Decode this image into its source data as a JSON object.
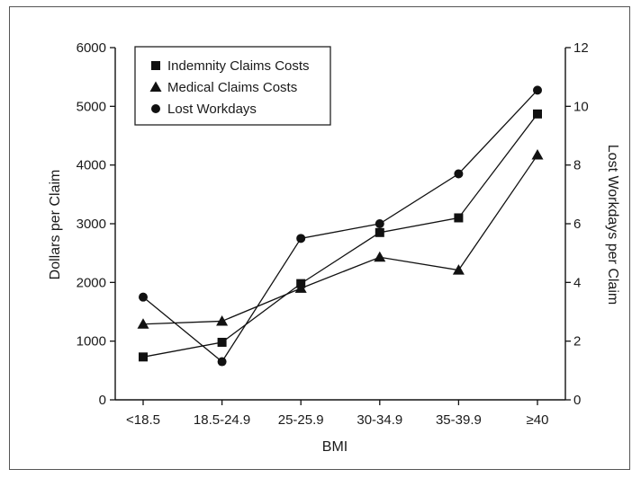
{
  "chart_data": {
    "type": "line",
    "categories": [
      "<18.5",
      "18.5-24.9",
      "25-25.9",
      "30-34.9",
      "35-39.9",
      "≥40"
    ],
    "xlabel": "BMI",
    "ylabel": "Dollars per Claim",
    "y2label": "Lost Workdays per Claim",
    "ylim": [
      0,
      6000
    ],
    "y2lim": [
      0,
      12
    ],
    "yticks": [
      "0",
      "1000",
      "2000",
      "3000",
      "4000",
      "5000",
      "6000"
    ],
    "y2ticks": [
      "0",
      "2",
      "4",
      "6",
      "8",
      "10",
      "12"
    ],
    "grid": false,
    "legend": "top-left",
    "series": [
      {
        "name": "Indemnity Claims Costs",
        "marker": "square",
        "axis": "left",
        "values": [
          730,
          980,
          1980,
          2850,
          3100,
          4870
        ]
      },
      {
        "name": "Medical Claims Costs",
        "marker": "triangle",
        "axis": "left",
        "values": [
          1290,
          1340,
          1900,
          2430,
          2210,
          4170
        ]
      },
      {
        "name": "Lost Workdays",
        "marker": "circle",
        "axis": "right",
        "values": [
          3.5,
          1.3,
          5.5,
          6.0,
          7.7,
          10.55
        ]
      }
    ]
  }
}
